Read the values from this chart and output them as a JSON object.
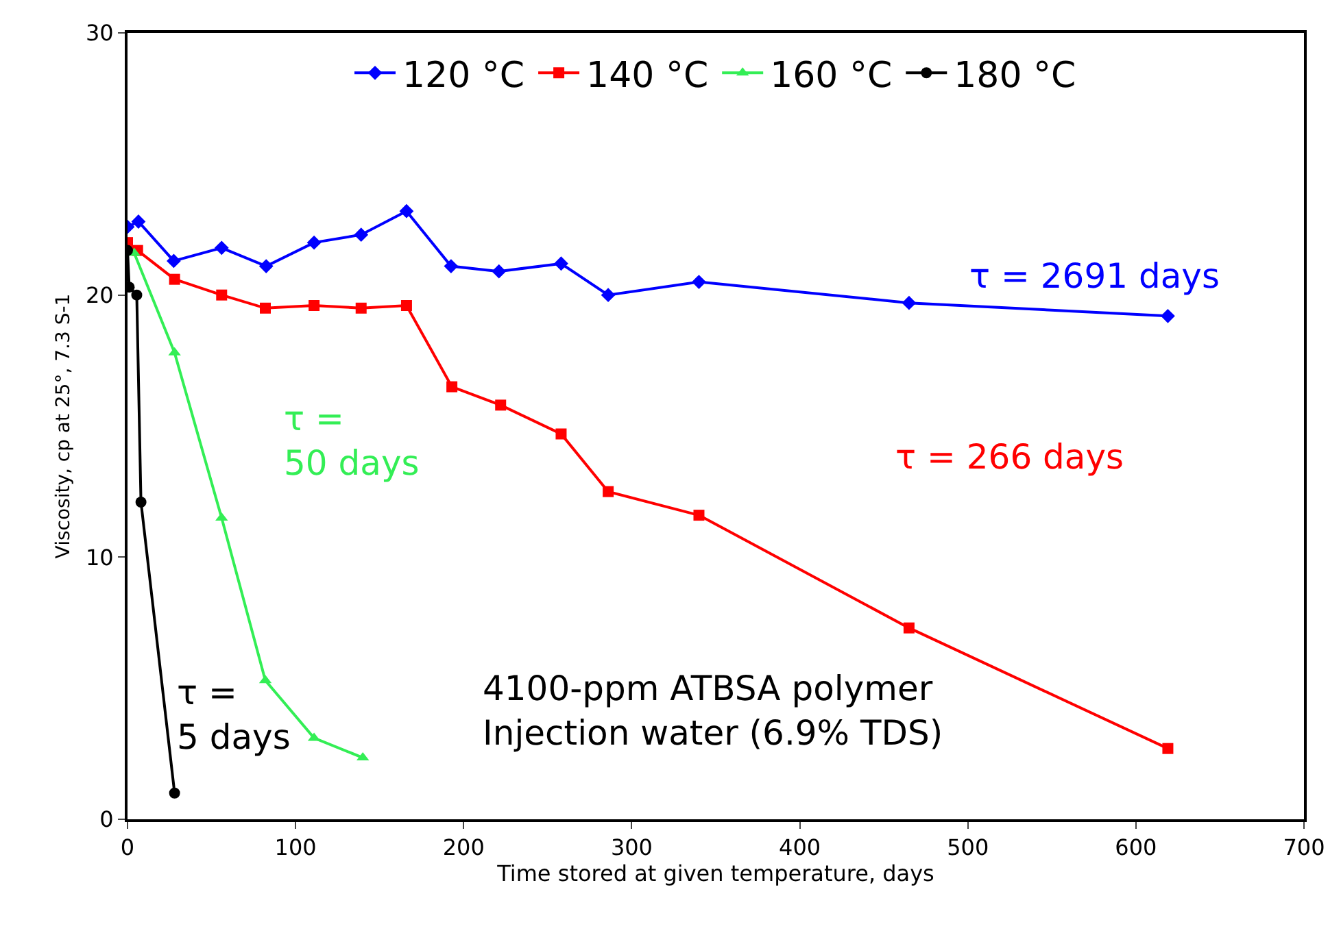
{
  "chart_data": {
    "type": "line",
    "xlabel": "Time stored at given temperature, days",
    "ylabel": "Viscosity, cp at 25°, 7.3 S-1",
    "xlim": [
      0,
      700
    ],
    "xticks": [
      0,
      100,
      200,
      300,
      400,
      500,
      600,
      700
    ],
    "ylim": [
      0,
      30
    ],
    "yticks": [
      0,
      10,
      20,
      30
    ],
    "legend": "top",
    "series": [
      {
        "name": "120 °C",
        "color": "#0000ff",
        "marker": "diamond",
        "x": [
          0,
          6.5,
          27.5,
          56,
          82.5,
          111,
          139,
          166,
          192.5,
          221,
          258,
          286,
          340,
          465,
          619
        ],
        "values": [
          22.6,
          22.8,
          21.3,
          21.8,
          21.1,
          22.0,
          22.3,
          23.2,
          21.1,
          20.9,
          21.2,
          20.0,
          20.5,
          19.7,
          19.2
        ]
      },
      {
        "name": "140 °C",
        "color": "#ff0000",
        "marker": "square",
        "x": [
          0,
          6,
          28,
          56,
          82,
          111,
          139,
          166,
          193,
          222,
          258,
          286,
          340,
          465,
          619
        ],
        "values": [
          22.0,
          21.7,
          20.6,
          20.0,
          19.5,
          19.6,
          19.5,
          19.6,
          16.5,
          15.8,
          14.7,
          12.5,
          11.6,
          7.3,
          2.7
        ]
      },
      {
        "name": "160 °C",
        "color": "#33ee55",
        "marker": "triangle",
        "x": [
          0,
          4,
          28,
          56,
          82,
          111,
          140
        ],
        "values": [
          21.7,
          21.6,
          17.8,
          11.5,
          5.3,
          3.1,
          2.35
        ]
      },
      {
        "name": "180 °C",
        "color": "#000000",
        "marker": "circle",
        "x": [
          0,
          1,
          5.5,
          8,
          28
        ],
        "values": [
          21.7,
          20.3,
          20.0,
          12.1,
          1.0
        ]
      }
    ],
    "annotations": [
      "τ = 2691 days",
      "τ = 266 days",
      "τ =\n50 days",
      "τ =\n5 days",
      "4100-ppm ATBSA polymer\nInjection water (6.9% TDS)"
    ]
  }
}
